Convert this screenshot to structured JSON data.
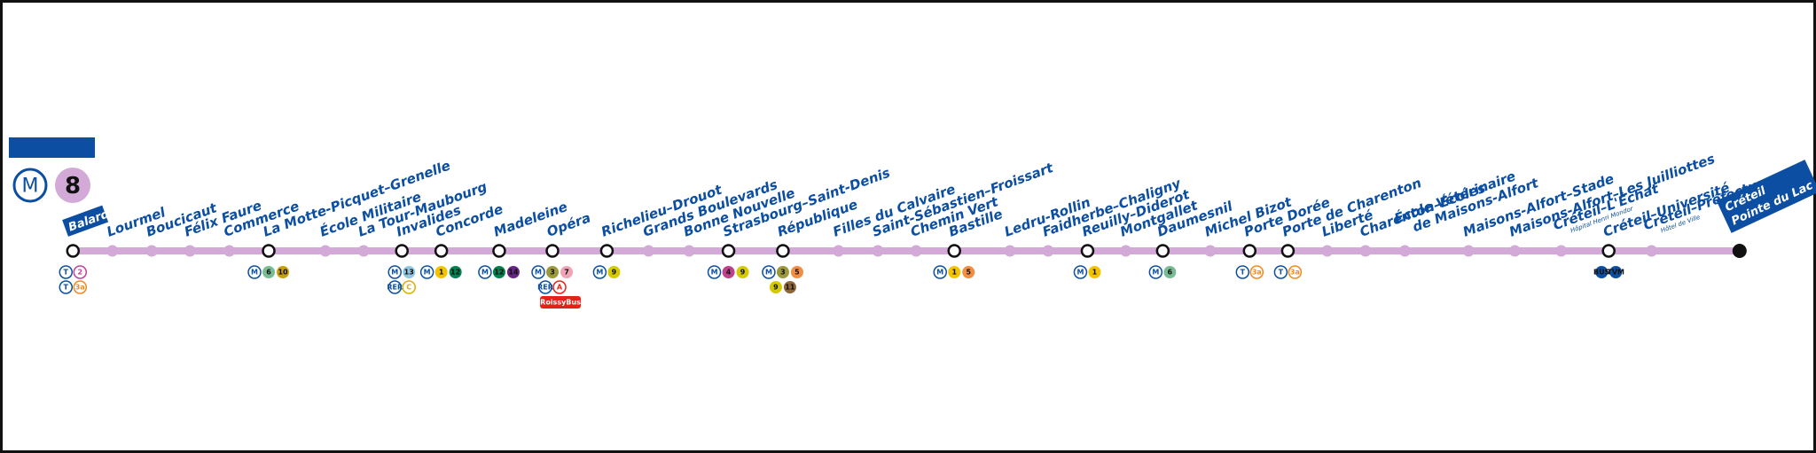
{
  "header": {
    "network": "M",
    "line": "8"
  },
  "line_color": "#d3a9d8",
  "stations": [
    {
      "name": "Balard",
      "terminus": true,
      "connections": [
        [
          {
            "label": "T",
            "color": "#0b4ea2",
            "style": "outline"
          },
          {
            "label": "2",
            "color": "#c0409a",
            "style": "outline"
          }
        ],
        [
          {
            "label": "T",
            "color": "#0b4ea2",
            "style": "outline"
          },
          {
            "label": "3a",
            "color": "#f08a1e",
            "style": "outline"
          }
        ]
      ]
    },
    {
      "name": "Lourmel"
    },
    {
      "name": "Boucicaut"
    },
    {
      "name": "Félix Faure"
    },
    {
      "name": "Commerce"
    },
    {
      "name": "La Motte-Picquet–Grenelle",
      "connections": [
        [
          {
            "label": "M",
            "color": "#0b4ea2",
            "style": "outline"
          },
          {
            "label": "6",
            "color": "#79bb92",
            "style": "fill"
          },
          {
            "label": "10",
            "color": "#c9a00a",
            "style": "fill"
          }
        ]
      ]
    },
    {
      "name": "École Militaire"
    },
    {
      "name": "La Tour-Maubourg"
    },
    {
      "name": "Invalides",
      "connections": [
        [
          {
            "label": "M",
            "color": "#0b4ea2",
            "style": "outline"
          },
          {
            "label": "13",
            "color": "#8fc7e0",
            "style": "fill"
          }
        ],
        [
          {
            "label": "RER",
            "color": "#0b4ea2",
            "style": "outline"
          },
          {
            "label": "C",
            "color": "#d9b000",
            "style": "outline"
          }
        ]
      ]
    },
    {
      "name": "Concorde",
      "connections": [
        [
          {
            "label": "M",
            "color": "#0b4ea2",
            "style": "outline"
          },
          {
            "label": "1",
            "color": "#f2c400",
            "style": "fill"
          },
          {
            "label": "12",
            "color": "#00814f",
            "style": "fill"
          }
        ]
      ]
    },
    {
      "name": "Madeleine",
      "connections": [
        [
          {
            "label": "M",
            "color": "#0b4ea2",
            "style": "outline"
          },
          {
            "label": "12",
            "color": "#00814f",
            "style": "fill"
          },
          {
            "label": "14",
            "color": "#662483",
            "style": "fill"
          }
        ]
      ]
    },
    {
      "name": "Opéra",
      "connections": [
        [
          {
            "label": "M",
            "color": "#0b4ea2",
            "style": "outline"
          },
          {
            "label": "3",
            "color": "#9b993b",
            "style": "fill"
          },
          {
            "label": "7",
            "color": "#f2a4b7",
            "style": "fill"
          }
        ],
        [
          {
            "label": "RER",
            "color": "#0b4ea2",
            "style": "outline"
          },
          {
            "label": "A",
            "color": "#e2231a",
            "style": "outline"
          }
        ],
        [
          {
            "label": "RoissyBus",
            "color": "#e2231a",
            "style": "fill"
          }
        ]
      ]
    },
    {
      "name": "Richelieu–Drouot",
      "connections": [
        [
          {
            "label": "M",
            "color": "#0b4ea2",
            "style": "outline"
          },
          {
            "label": "9",
            "color": "#d5c900",
            "style": "fill"
          }
        ]
      ]
    },
    {
      "name": "Grands Boulevards"
    },
    {
      "name": "Bonne Nouvelle"
    },
    {
      "name": "Strasbourg–Saint-Denis",
      "connections": [
        [
          {
            "label": "M",
            "color": "#0b4ea2",
            "style": "outline"
          },
          {
            "label": "4",
            "color": "#be418d",
            "style": "fill"
          },
          {
            "label": "9",
            "color": "#d5c900",
            "style": "fill"
          }
        ]
      ]
    },
    {
      "name": "République",
      "connections": [
        [
          {
            "label": "M",
            "color": "#0b4ea2",
            "style": "outline"
          },
          {
            "label": "3",
            "color": "#9b993b",
            "style": "fill"
          },
          {
            "label": "5",
            "color": "#f28e42",
            "style": "fill"
          }
        ],
        [
          {
            "label": "9",
            "color": "#d5c900",
            "style": "fill"
          },
          {
            "label": "11",
            "color": "#8d6538",
            "style": "fill"
          }
        ]
      ]
    },
    {
      "name": "Filles du Calvaire"
    },
    {
      "name": "Saint-Sébastien–Froissart"
    },
    {
      "name": "Chemin Vert"
    },
    {
      "name": "Bastille",
      "connections": [
        [
          {
            "label": "M",
            "color": "#0b4ea2",
            "style": "outline"
          },
          {
            "label": "1",
            "color": "#f2c400",
            "style": "fill"
          },
          {
            "label": "5",
            "color": "#f28e42",
            "style": "fill"
          }
        ]
      ]
    },
    {
      "name": "Ledru-Rollin"
    },
    {
      "name": "Faidherbe–Chaligny"
    },
    {
      "name": "Reuilly–Diderot",
      "connections": [
        [
          {
            "label": "M",
            "color": "#0b4ea2",
            "style": "outline"
          },
          {
            "label": "1",
            "color": "#f2c400",
            "style": "fill"
          }
        ]
      ]
    },
    {
      "name": "Montgallet"
    },
    {
      "name": "Daumesnil",
      "connections": [
        [
          {
            "label": "M",
            "color": "#0b4ea2",
            "style": "outline"
          },
          {
            "label": "6",
            "color": "#79bb92",
            "style": "fill"
          }
        ]
      ]
    },
    {
      "name": "Michel Bizot"
    },
    {
      "name": "Porte Dorée",
      "connections": [
        [
          {
            "label": "T",
            "color": "#0b4ea2",
            "style": "outline"
          },
          {
            "label": "3a",
            "color": "#f08a1e",
            "style": "outline"
          }
        ]
      ]
    },
    {
      "name": "Porte de Charenton",
      "connections": [
        [
          {
            "label": "T",
            "color": "#0b4ea2",
            "style": "outline"
          },
          {
            "label": "3a",
            "color": "#f08a1e",
            "style": "outline"
          }
        ]
      ]
    },
    {
      "name": "Liberté"
    },
    {
      "name": "Charenton–Écoles"
    },
    {
      "name": "École Vétérinaire",
      "name2": "de Maisons-Alfort"
    },
    {
      "name": "Maisons-Alfort–Stade"
    },
    {
      "name": "Maisons-Alfort–Les Juilliottes"
    },
    {
      "name": "Créteil–L'Échat",
      "sub": "Hôpital Henri Mondor"
    },
    {
      "name": "Créteil–Université",
      "connections": [
        [
          {
            "label": "BUS",
            "color": "#0b4ea2",
            "style": "fill"
          },
          {
            "label": "TVM",
            "color": "#0b4ea2",
            "style": "fill"
          }
        ]
      ]
    },
    {
      "name": "Créteil–Préfecture",
      "sub": "Hôtel de Ville"
    },
    {
      "name": "Créteil",
      "name2": "Pointe du Lac",
      "terminus": true
    }
  ]
}
